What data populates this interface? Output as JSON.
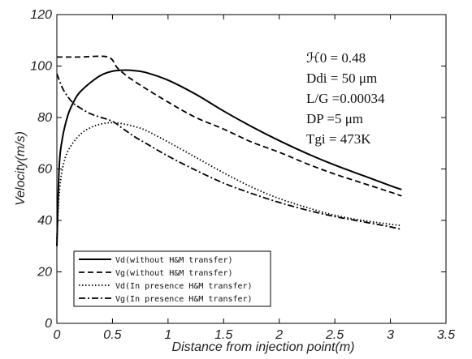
{
  "chart_data": {
    "type": "line",
    "xlabel": "Distance from injection point(m)",
    "ylabel": "Velocity(m/s)",
    "xlim": [
      0,
      3.5
    ],
    "ylim": [
      0,
      120
    ],
    "xticks": [
      "0",
      "0.5",
      "1",
      "1.5",
      "2",
      "2.5",
      "3",
      "3.5"
    ],
    "yticks": [
      "0",
      "20",
      "40",
      "60",
      "80",
      "100",
      "120"
    ],
    "grid": false,
    "legend_position": "bottom-left",
    "annotations": [
      "ℋ0 = 0.48",
      "Ddi = 50 μm",
      "L/G =0.00034",
      "DP =5 μm",
      "Tgi = 473K"
    ],
    "series": [
      {
        "name": "Vd(without H&M transfer)",
        "style": "solid",
        "x": [
          0,
          0.02,
          0.05,
          0.1,
          0.15,
          0.2,
          0.3,
          0.4,
          0.5,
          0.6,
          0.7,
          0.8,
          1.0,
          1.25,
          1.5,
          1.75,
          2.0,
          2.25,
          2.5,
          2.75,
          3.0,
          3.1
        ],
        "values": [
          30,
          60,
          72,
          81,
          86,
          89.5,
          93.5,
          96.5,
          98,
          98.4,
          98.2,
          97.5,
          94.5,
          89,
          82.5,
          76.5,
          71,
          66,
          61.5,
          57.5,
          53.5,
          52
        ]
      },
      {
        "name": "Vg(without H&M transfer)",
        "style": "dashed",
        "x": [
          0,
          0.2,
          0.46,
          0.55,
          0.7,
          1.0,
          1.25,
          1.5,
          1.75,
          2.0,
          2.25,
          2.5,
          2.75,
          3.0,
          3.1
        ],
        "values": [
          103.5,
          103.5,
          103.5,
          99,
          94,
          86,
          80,
          75.5,
          70.5,
          66.5,
          62,
          58,
          54.5,
          51,
          49.5
        ]
      },
      {
        "name": "Vd(In presence H&M transfer)",
        "style": "dotted",
        "x": [
          0,
          0.02,
          0.05,
          0.1,
          0.2,
          0.3,
          0.4,
          0.5,
          0.6,
          0.7,
          0.8,
          1.0,
          1.25,
          1.5,
          1.75,
          2.0,
          2.25,
          2.5,
          2.75,
          3.0,
          3.1
        ],
        "values": [
          33,
          50,
          60,
          67,
          73,
          76,
          77.5,
          78,
          77.5,
          76.5,
          75,
          70.5,
          64.5,
          58.5,
          53,
          48.5,
          45,
          42,
          40,
          38.5,
          38
        ]
      },
      {
        "name": "Vg(In presence H&M transfer)",
        "style": "dashdot",
        "x": [
          0,
          0.05,
          0.1,
          0.15,
          0.2,
          0.3,
          0.4,
          0.5,
          0.6,
          0.7,
          0.8,
          1.0,
          1.25,
          1.5,
          1.75,
          2.0,
          2.25,
          2.5,
          2.75,
          3.0,
          3.1
        ],
        "values": [
          97,
          91.5,
          88,
          85.5,
          84,
          81.5,
          80,
          78.5,
          75.5,
          72.5,
          70,
          65,
          59.5,
          54.5,
          50.5,
          47,
          44,
          41.5,
          39.5,
          37.5,
          36.5
        ]
      }
    ]
  }
}
